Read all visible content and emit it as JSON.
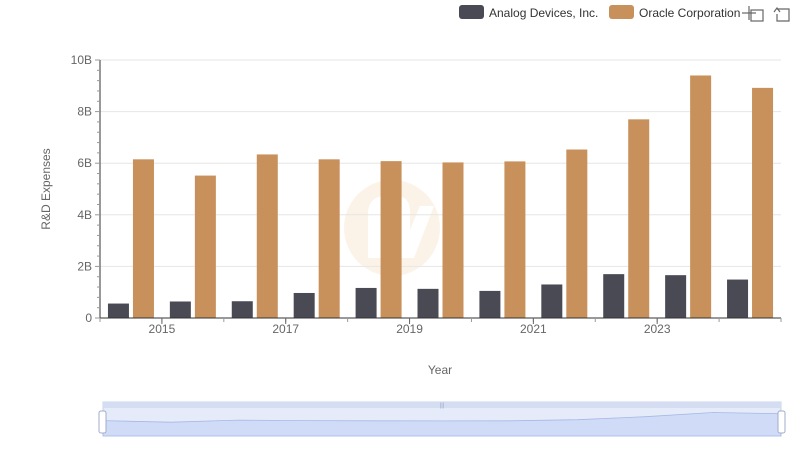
{
  "toolbar": {
    "zoom_icon": "zoom-area-icon",
    "restore_icon": "restore-icon"
  },
  "colors": {
    "analog": "#4a4a55",
    "oracle": "#c8905a",
    "grid": "#e6e6e6",
    "axis": "#333333",
    "zoom_fill": "#dbe4fb",
    "zoom_border": "#c8d3ee"
  },
  "chart_data": {
    "type": "bar",
    "xlabel": "Year",
    "ylabel": "R&D Expenses",
    "x": [
      2014,
      2015,
      2016,
      2017,
      2018,
      2019,
      2020,
      2021,
      2022,
      2023,
      2024
    ],
    "x_tick_labels": [
      "2015",
      "2017",
      "2019",
      "2021",
      "2023"
    ],
    "y_tick_labels": [
      "0",
      "2B",
      "4B",
      "6B",
      "8B",
      "10B"
    ],
    "ylim": [
      0,
      10000000000
    ],
    "grid": true,
    "legend_position": "top-right",
    "series": [
      {
        "name": "Analog Devices, Inc.",
        "color": "#4a4a55",
        "values": [
          560000000,
          640000000,
          650000000,
          970000000,
          1165000000,
          1130000000,
          1050000000,
          1300000000,
          1700000000,
          1660000000,
          1490000000
        ]
      },
      {
        "name": "Oracle Corporation",
        "color": "#c8905a",
        "values": [
          6150000000,
          5520000000,
          6340000000,
          6150000000,
          6080000000,
          6030000000,
          6070000000,
          6530000000,
          7700000000,
          9400000000,
          8920000000
        ]
      }
    ]
  }
}
